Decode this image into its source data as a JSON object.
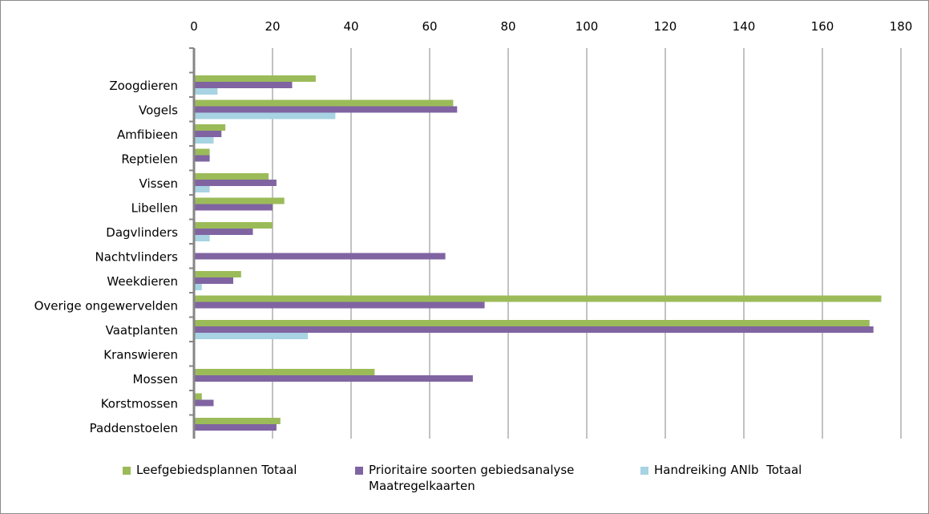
{
  "chart_data": {
    "type": "bar",
    "orientation": "horizontal",
    "x_axis_position": "top",
    "xlim": [
      0,
      180
    ],
    "x_ticks": [
      0,
      20,
      40,
      60,
      80,
      100,
      120,
      140,
      160,
      180
    ],
    "grid": true,
    "legend_position": "bottom",
    "categories": [
      "Zoogdieren",
      "Vogels",
      "Amfibieen",
      "Reptielen",
      "Vissen",
      "Libellen",
      "Dagvlinders",
      "Nachtvlinders",
      "Weekdieren",
      "Overige ongewervelden",
      "Vaatplanten",
      "Kranswieren",
      "Mossen",
      "Korstmossen",
      "Paddenstoelen"
    ],
    "series": [
      {
        "name": "Leefgebiedsplannen Totaal",
        "color": "#9BBB59",
        "values": [
          31,
          66,
          8,
          4,
          19,
          23,
          20,
          0,
          12,
          175,
          172,
          0,
          46,
          2,
          22
        ]
      },
      {
        "name": "Prioritaire soorten gebiedsanalyse Maatregelkaarten",
        "color": "#8064A2",
        "values": [
          25,
          67,
          7,
          4,
          21,
          20,
          15,
          64,
          10,
          74,
          173,
          0,
          71,
          5,
          21
        ]
      },
      {
        "name": "Handreiking ANlb  Totaal",
        "color": "#A7D3E2",
        "values": [
          6,
          36,
          5,
          0,
          4,
          0,
          4,
          0,
          2,
          0,
          29,
          0,
          0,
          0,
          0
        ]
      }
    ]
  },
  "legend": [
    {
      "text": "Leefgebiedsplannen Totaal",
      "color": "#9BBB59"
    },
    {
      "text": "Prioritaire soorten gebiedsanalyse\nMaatregelkaarten",
      "color": "#8064A2"
    },
    {
      "text": "Handreiking ANlb  Totaal",
      "color": "#A7D3E2"
    }
  ]
}
